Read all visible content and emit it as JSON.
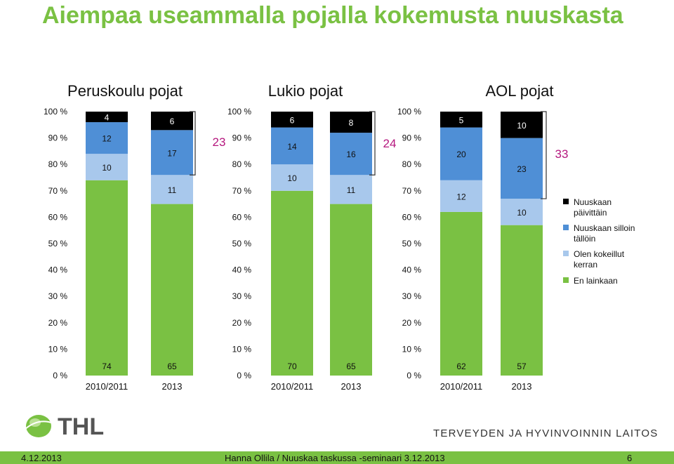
{
  "slide": {
    "title": "Aiempaa useammalla pojalla kokemusta nuuskasta",
    "footer_date": "4.12.2013",
    "footer_center": "Hanna Ollila / Nuuskaa taskussa -seminaari 3.12.2013",
    "page_number": "6",
    "logo_text": "THL",
    "org_name": "TERVEYDEN JA HYVINVOINNIN LAITOS"
  },
  "colors": {
    "title": "#7ac143",
    "footer_bar": "#7ac143",
    "sum_label": "#b5177e",
    "series": [
      "#7ac143",
      "#a8c8ec",
      "#4f8fd6",
      "#000000"
    ]
  },
  "chart_data": {
    "type": "bar",
    "stacked": true,
    "percent_stacked": true,
    "ylim": [
      0,
      100
    ],
    "yticks": [
      "0 %",
      "10 %",
      "20 %",
      "30 %",
      "40 %",
      "50 %",
      "60 %",
      "70 %",
      "80 %",
      "90 %",
      "100 %"
    ],
    "legend_position": "right",
    "series_names": [
      "En lainkaan",
      "Olen kokeillut kerran",
      "Nuuskaan silloin tällöin",
      "Nuuskaan päivittäin"
    ],
    "groups": [
      {
        "title": "Peruskoulu pojat",
        "categories": [
          "2010/2011",
          "2013"
        ],
        "series": [
          {
            "name": "En lainkaan",
            "values": [
              74,
              65
            ]
          },
          {
            "name": "Olen kokeillut kerran",
            "values": [
              10,
              11
            ]
          },
          {
            "name": "Nuuskaan silloin tällöin",
            "values": [
              12,
              17
            ]
          },
          {
            "name": "Nuuskaan päivittäin",
            "values": [
              4,
              6
            ]
          }
        ],
        "bracket_total": "23"
      },
      {
        "title": "Lukio pojat",
        "categories": [
          "2010/2011",
          "2013"
        ],
        "series": [
          {
            "name": "En lainkaan",
            "values": [
              70,
              65
            ]
          },
          {
            "name": "Olen kokeillut kerran",
            "values": [
              10,
              11
            ]
          },
          {
            "name": "Nuuskaan silloin tällöin",
            "values": [
              14,
              16
            ]
          },
          {
            "name": "Nuuskaan päivittäin",
            "values": [
              6,
              8
            ]
          }
        ],
        "bracket_total": "24"
      },
      {
        "title": "AOL pojat",
        "categories": [
          "2010/2011",
          "2013"
        ],
        "series": [
          {
            "name": "En lainkaan",
            "values": [
              62,
              57
            ]
          },
          {
            "name": "Olen kokeillut kerran",
            "values": [
              12,
              10
            ]
          },
          {
            "name": "Nuuskaan silloin tällöin",
            "values": [
              20,
              23
            ]
          },
          {
            "name": "Nuuskaan päivittäin",
            "values": [
              5,
              10
            ]
          }
        ],
        "bracket_total": "33"
      }
    ],
    "legend": [
      {
        "label_lines": [
          "Nuuskaan",
          "päivittäin"
        ],
        "color": "#000000"
      },
      {
        "label_lines": [
          "Nuuskaan silloin",
          "tällöin"
        ],
        "color": "#4f8fd6"
      },
      {
        "label_lines": [
          "Olen kokeillut",
          "kerran"
        ],
        "color": "#a8c8ec"
      },
      {
        "label_lines": [
          "En lainkaan"
        ],
        "color": "#7ac143"
      }
    ]
  }
}
